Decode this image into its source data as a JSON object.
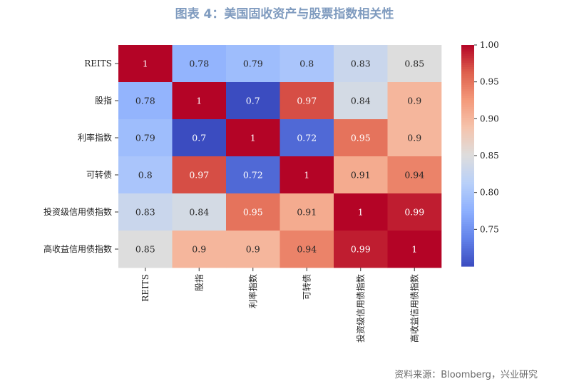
{
  "title": "图表 4：美国固收资产与股票指数相关性",
  "source": "资料来源：Bloomberg，兴业研究",
  "chart_data": {
    "type": "heatmap",
    "rows": [
      "REITS",
      "股指",
      "利率指数",
      "可转债",
      "投资级信用债指数",
      "高收益信用债指数"
    ],
    "columns": [
      "REITS",
      "股指",
      "利率指数",
      "可转债",
      "投资级信用债指数",
      "高收益信用债指数"
    ],
    "values": [
      [
        1,
        0.78,
        0.79,
        0.8,
        0.83,
        0.85
      ],
      [
        0.78,
        1,
        0.7,
        0.97,
        0.84,
        0.9
      ],
      [
        0.79,
        0.7,
        1,
        0.72,
        0.95,
        0.9
      ],
      [
        0.8,
        0.97,
        0.72,
        1,
        0.91,
        0.94
      ],
      [
        0.83,
        0.84,
        0.95,
        0.91,
        1,
        0.99
      ],
      [
        0.85,
        0.9,
        0.9,
        0.94,
        0.99,
        1
      ]
    ],
    "cell_labels": [
      [
        "1",
        "0.78",
        "0.79",
        "0.8",
        "0.83",
        "0.85"
      ],
      [
        "0.78",
        "1",
        "0.7",
        "0.97",
        "0.84",
        "0.9"
      ],
      [
        "0.79",
        "0.7",
        "1",
        "0.72",
        "0.95",
        "0.9"
      ],
      [
        "0.8",
        "0.97",
        "0.72",
        "1",
        "0.91",
        "0.94"
      ],
      [
        "0.83",
        "0.84",
        "0.95",
        "0.91",
        "1",
        "0.99"
      ],
      [
        "0.85",
        "0.9",
        "0.9",
        "0.94",
        "0.99",
        "1"
      ]
    ],
    "colorscale": "coolwarm",
    "vmin": 0.7,
    "vmax": 1.0,
    "colorbar_ticks": [
      0.75,
      0.8,
      0.85,
      0.9,
      0.95,
      1.0
    ],
    "colorbar_tick_labels": [
      "0.75",
      "0.80",
      "0.85",
      "0.90",
      "0.95",
      "1.00"
    ]
  }
}
